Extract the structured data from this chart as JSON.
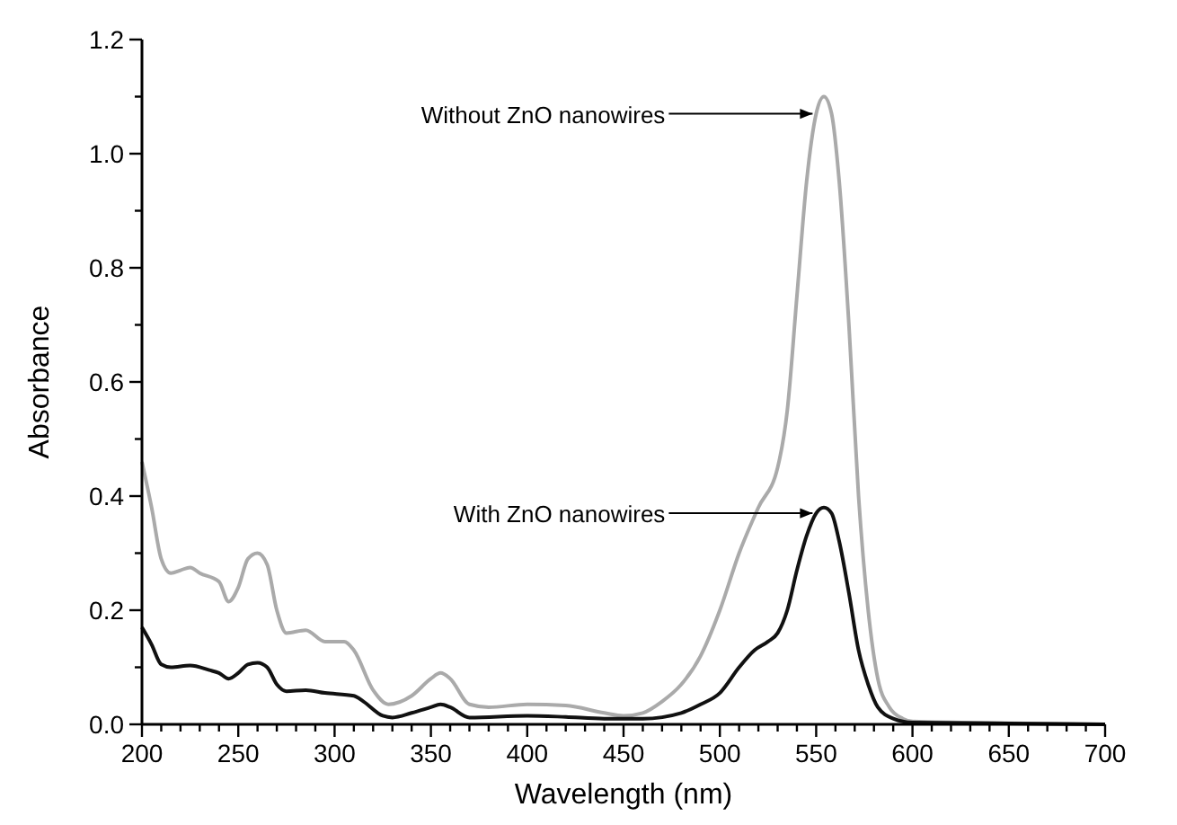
{
  "chart_data": {
    "type": "line",
    "xlabel": "Wavelength (nm)",
    "ylabel": "Absorbance",
    "xlim": [
      200,
      700
    ],
    "ylim": [
      0,
      1.2
    ],
    "xticks": [
      200,
      {
        "value": 210,
        "label": null
      },
      {
        "value": 220,
        "label": null
      },
      {
        "value": 230,
        "label": null
      },
      {
        "value": 240,
        "label": null
      },
      250,
      {
        "value": 260,
        "label": null
      },
      {
        "value": 270,
        "label": null
      },
      {
        "value": 280,
        "label": null
      },
      {
        "value": 290,
        "label": null
      },
      300,
      {
        "value": 310,
        "label": null
      },
      {
        "value": 320,
        "label": null
      },
      {
        "value": 330,
        "label": null
      },
      {
        "value": 340,
        "label": null
      },
      350,
      {
        "value": 360,
        "label": null
      },
      {
        "value": 370,
        "label": null
      },
      {
        "value": 380,
        "label": null
      },
      {
        "value": 390,
        "label": null
      },
      400,
      {
        "value": 410,
        "label": null
      },
      {
        "value": 420,
        "label": null
      },
      {
        "value": 430,
        "label": null
      },
      {
        "value": 440,
        "label": null
      },
      450,
      {
        "value": 460,
        "label": null
      },
      {
        "value": 470,
        "label": null
      },
      {
        "value": 480,
        "label": null
      },
      {
        "value": 490,
        "label": null
      },
      500,
      {
        "value": 510,
        "label": null
      },
      {
        "value": 520,
        "label": null
      },
      {
        "value": 530,
        "label": null
      },
      {
        "value": 540,
        "label": null
      },
      550,
      {
        "value": 560,
        "label": null
      },
      {
        "value": 570,
        "label": null
      },
      {
        "value": 580,
        "label": null
      },
      {
        "value": 590,
        "label": null
      },
      600,
      {
        "value": 610,
        "label": null
      },
      {
        "value": 620,
        "label": null
      },
      {
        "value": 630,
        "label": null
      },
      {
        "value": 640,
        "label": null
      },
      650,
      {
        "value": 660,
        "label": null
      },
      {
        "value": 670,
        "label": null
      },
      {
        "value": 680,
        "label": null
      },
      {
        "value": 690,
        "label": null
      },
      700
    ],
    "yticks": [
      {
        "value": 0,
        "label": "0.0"
      },
      {
        "value": 0.1,
        "label": null
      },
      {
        "value": 0.2,
        "label": "0.2"
      },
      {
        "value": 0.3,
        "label": null
      },
      {
        "value": 0.4,
        "label": "0.4"
      },
      {
        "value": 0.5,
        "label": null
      },
      {
        "value": 0.6,
        "label": "0.6"
      },
      {
        "value": 0.7,
        "label": null
      },
      {
        "value": 0.8,
        "label": "0.8"
      },
      {
        "value": 0.9,
        "label": null
      },
      {
        "value": 1.0,
        "label": "1.0"
      },
      {
        "value": 1.1,
        "label": null
      },
      {
        "value": 1.2,
        "label": "1.2"
      }
    ],
    "grid": false,
    "marker": "none",
    "line_style": "solid",
    "series": [
      {
        "color": "#aaaaaa",
        "x": [
          200,
          205,
          210,
          215,
          220,
          225,
          230,
          240,
          245,
          250,
          255,
          260,
          265,
          270,
          275,
          285,
          295,
          305,
          310,
          320,
          328,
          340,
          350,
          355,
          360,
          370,
          380,
          400,
          420,
          440,
          450,
          460,
          470,
          480,
          490,
          500,
          510,
          520,
          530,
          535,
          540,
          545,
          550,
          554,
          558,
          562,
          567,
          572,
          577,
          582,
          588,
          595,
          600,
          650,
          700
        ],
        "values": [
          0.46,
          0.38,
          0.29,
          0.265,
          0.27,
          0.275,
          0.265,
          0.25,
          0.215,
          0.24,
          0.29,
          0.3,
          0.28,
          0.2,
          0.16,
          0.165,
          0.145,
          0.145,
          0.13,
          0.06,
          0.035,
          0.05,
          0.08,
          0.09,
          0.08,
          0.035,
          0.03,
          0.035,
          0.033,
          0.02,
          0.015,
          0.02,
          0.04,
          0.07,
          0.12,
          0.2,
          0.3,
          0.38,
          0.45,
          0.55,
          0.75,
          0.95,
          1.07,
          1.1,
          1.07,
          0.95,
          0.7,
          0.4,
          0.2,
          0.08,
          0.03,
          0.01,
          0.005,
          0.002,
          0
        ]
      },
      {
        "color": "#111111",
        "x": [
          200,
          205,
          210,
          215,
          225,
          235,
          240,
          245,
          250,
          255,
          260,
          265,
          270,
          275,
          285,
          295,
          310,
          315,
          325,
          330,
          340,
          350,
          355,
          360,
          370,
          400,
          420,
          440,
          460,
          480,
          490,
          500,
          510,
          518,
          525,
          530,
          535,
          540,
          545,
          550,
          554,
          558,
          562,
          567,
          572,
          577,
          582,
          590,
          600,
          700
        ],
        "values": [
          0.17,
          0.14,
          0.105,
          0.1,
          0.103,
          0.095,
          0.09,
          0.08,
          0.09,
          0.105,
          0.108,
          0.1,
          0.07,
          0.058,
          0.06,
          0.055,
          0.05,
          0.04,
          0.015,
          0.012,
          0.02,
          0.03,
          0.035,
          0.03,
          0.012,
          0.015,
          0.013,
          0.01,
          0.01,
          0.02,
          0.035,
          0.055,
          0.1,
          0.13,
          0.145,
          0.16,
          0.2,
          0.27,
          0.33,
          0.37,
          0.38,
          0.37,
          0.32,
          0.23,
          0.13,
          0.07,
          0.03,
          0.01,
          0.003,
          0
        ]
      }
    ],
    "annotations": [
      {
        "text": "Without ZnO nanowires",
        "x": 550,
        "y": 1.07
      },
      {
        "text": "With ZnO nanowires",
        "x": 550,
        "y": 0.37
      }
    ]
  }
}
